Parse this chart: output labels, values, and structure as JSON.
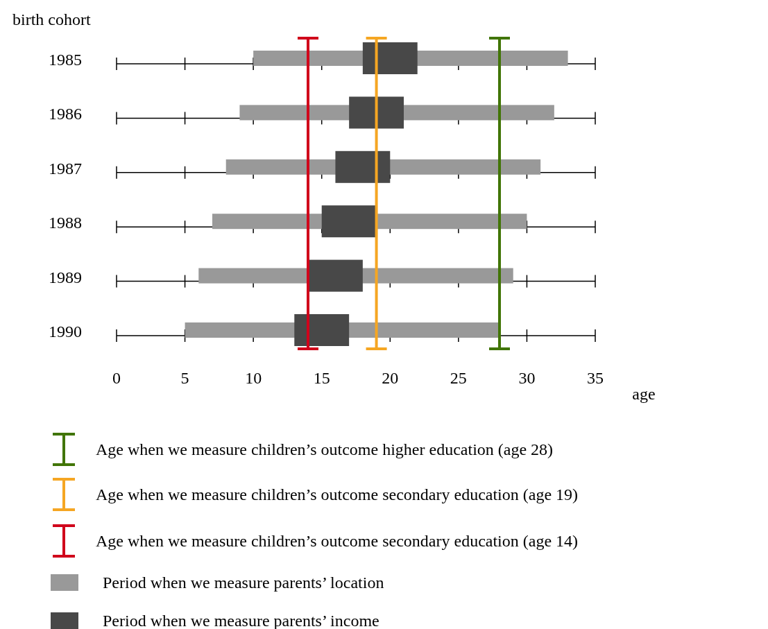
{
  "chart_data": {
    "type": "bar",
    "orientation": "horizontal",
    "ylabel": "birth cohort",
    "xlabel": "age",
    "categories": [
      "1985",
      "1986",
      "1987",
      "1988",
      "1989",
      "1990"
    ],
    "xlim": [
      0,
      35
    ],
    "xticks": [
      0,
      5,
      10,
      15,
      20,
      25,
      30,
      35
    ],
    "series": [
      {
        "name": "Period when we measure parents’ location",
        "color": "#999999",
        "base": [
          10,
          9,
          8,
          7,
          6,
          5
        ],
        "values": [
          23,
          23,
          23,
          23,
          23,
          23
        ]
      },
      {
        "name": "Period when we measure parents’ income",
        "color": "#484848",
        "base": [
          18,
          17,
          16,
          15,
          14,
          13
        ],
        "values": [
          4,
          4,
          4,
          4,
          4,
          4
        ]
      }
    ],
    "ref_lines": [
      {
        "axis": "x",
        "value": 14,
        "label": "Age when we measure children’s outcome secondary education (age 14)",
        "color": "#d0021b"
      },
      {
        "axis": "x",
        "value": 19,
        "label": "Age when we measure children’s outcome secondary education (age 19)",
        "color": "#f5a623"
      },
      {
        "axis": "x",
        "value": 28,
        "label": "Age when we measure children’s outcome higher education (age 28)",
        "color": "#417505"
      }
    ],
    "legend": "bottom"
  }
}
